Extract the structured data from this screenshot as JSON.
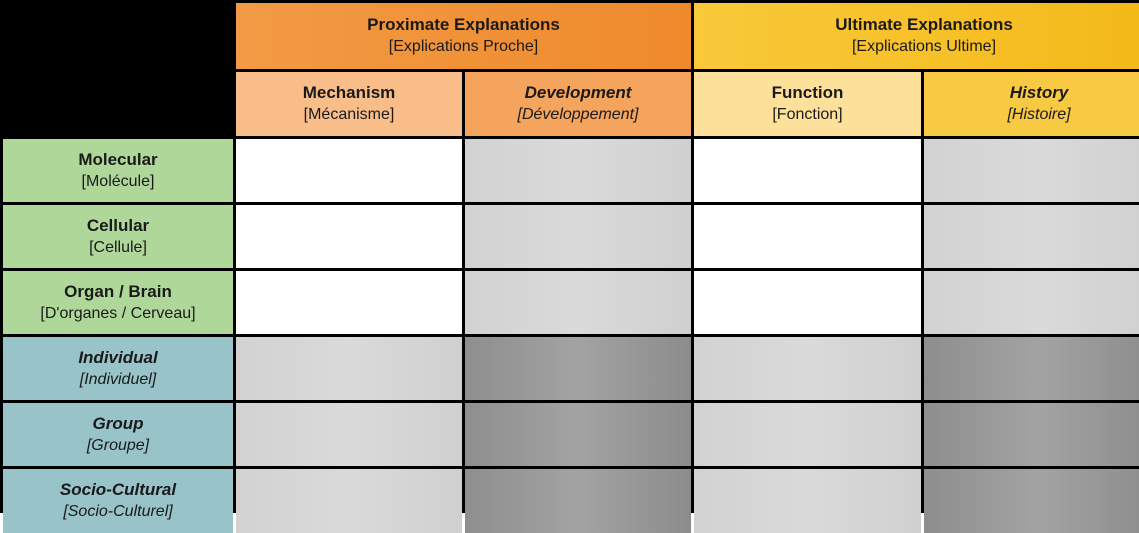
{
  "header": {
    "proximate": {
      "title": "Proximate Explanations",
      "subtitle": "[Explications Proche]",
      "color": "#ef8a2c"
    },
    "ultimate": {
      "title": "Ultimate Explanations",
      "subtitle": "[Explications Ultime]",
      "color": "#f4b919"
    }
  },
  "columns": [
    {
      "title": "Mechanism",
      "subtitle": "[Mécanisme]",
      "italic": false,
      "color": "#f8bd88"
    },
    {
      "title": "Development",
      "subtitle": "[Développement]",
      "italic": true,
      "color": "#f5a45d"
    },
    {
      "title": "Function",
      "subtitle": "[Fonction]",
      "italic": false,
      "color": "#fde19a"
    },
    {
      "title": "History",
      "subtitle": "[Histoire]",
      "italic": true,
      "color": "#f8c942"
    }
  ],
  "rows": [
    {
      "title": "Molecular",
      "subtitle": "[Molécule]",
      "italic": false,
      "color": "#afd79a",
      "cells": [
        "white",
        "light",
        "white",
        "light"
      ]
    },
    {
      "title": "Cellular",
      "subtitle": "[Cellule]",
      "italic": false,
      "color": "#afd79a",
      "cells": [
        "white",
        "light",
        "white",
        "light"
      ]
    },
    {
      "title": "Organ / Brain",
      "subtitle": "[D'organes / Cerveau]",
      "italic": false,
      "color": "#afd79a",
      "cells": [
        "white",
        "light",
        "white",
        "light"
      ]
    },
    {
      "title": "Individual",
      "subtitle": "[Individuel]",
      "italic": true,
      "color": "#97c3c9",
      "cells": [
        "light",
        "dark",
        "light",
        "dark"
      ]
    },
    {
      "title": "Group",
      "subtitle": "[Groupe]",
      "italic": true,
      "color": "#97c3c9",
      "cells": [
        "light",
        "dark",
        "light",
        "dark"
      ]
    },
    {
      "title": "Socio-Cultural",
      "subtitle": "[Socio-Culturel]",
      "italic": true,
      "color": "#97c3c9",
      "cells": [
        "light",
        "dark",
        "light",
        "dark"
      ]
    }
  ],
  "cell_colors": {
    "white": "#ffffff",
    "light": "#d4d4d4",
    "dark": "#959595"
  }
}
